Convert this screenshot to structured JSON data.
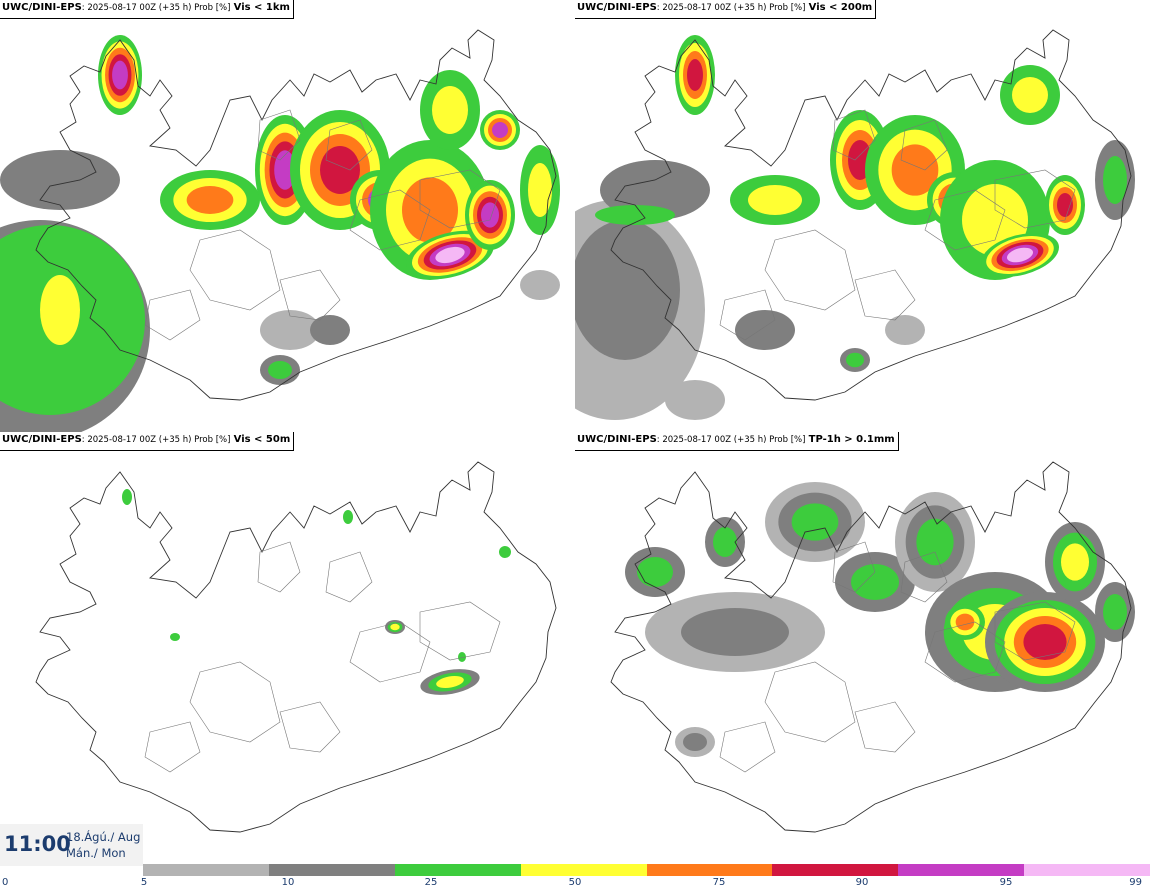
{
  "panels": [
    {
      "model": "UWC/DINI-EPS",
      "meta": ": 2025-08-17 00Z (+35 h) Prob [%]",
      "variable": "Vis < 1km"
    },
    {
      "model": "UWC/DINI-EPS",
      "meta": ": 2025-08-17 00Z (+35 h) Prob [%]",
      "variable": "Vis < 200m"
    },
    {
      "model": "UWC/DINI-EPS",
      "meta": ": 2025-08-17 00Z (+35 h) Prob [%]",
      "variable": "Vis < 50m"
    },
    {
      "model": "UWC/DINI-EPS",
      "meta": ": 2025-08-17 00Z (+35 h) Prob [%]",
      "variable": "TP-1h > 0.1mm"
    }
  ],
  "valid_time": {
    "time": "11:00",
    "date": "18.Ágú./ Aug",
    "day": "Mán./ Mon"
  },
  "colorbar": {
    "ticks": [
      "0",
      "5",
      "10",
      "25",
      "50",
      "75",
      "90",
      "95",
      "99"
    ],
    "colors": [
      "#b3b3b3",
      "#7f7f7f",
      "#3dcc3d",
      "#ffff33",
      "#ff7a1a",
      "#d1163f",
      "#c43cc4",
      "#f5b8f5"
    ]
  }
}
